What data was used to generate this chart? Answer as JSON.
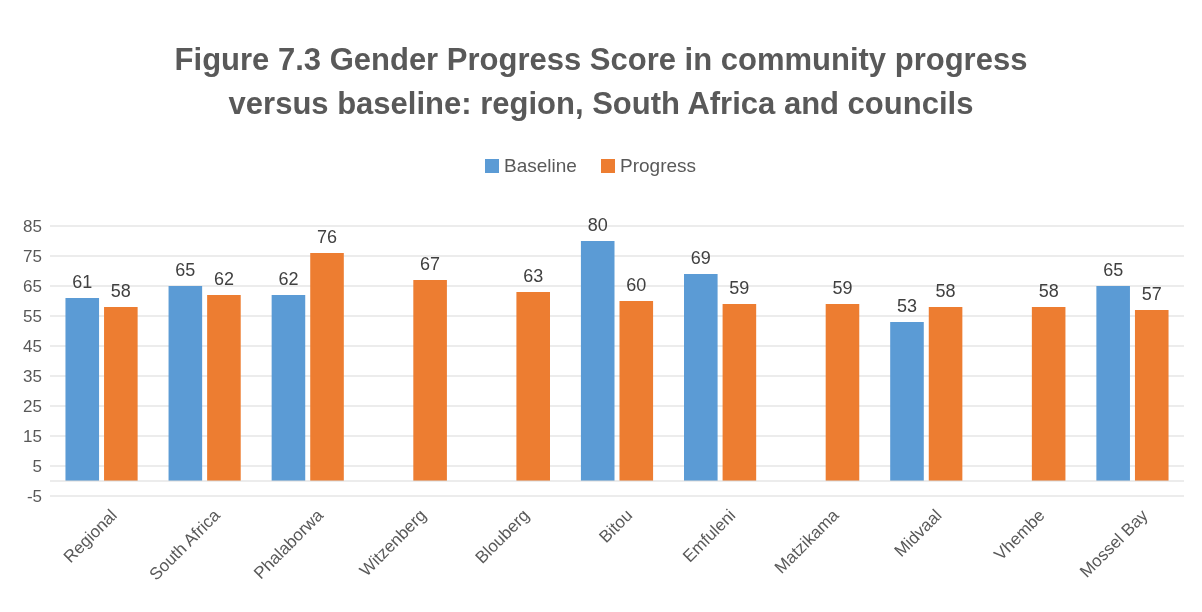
{
  "chart_data": {
    "type": "bar",
    "title": "Figure 7.3 Gender Progress Score in community progress versus baseline: region, South Africa and councils",
    "categories": [
      "Regional",
      "South Africa",
      "Phalaborwa",
      "Witzenberg",
      "Blouberg",
      "Bitou",
      "Emfuleni",
      "Matzikama",
      "Midvaal",
      "Vhembe",
      "Mossel Bay"
    ],
    "series": [
      {
        "name": "Baseline",
        "color": "#5b9bd5",
        "values": [
          61,
          65,
          62,
          null,
          null,
          80,
          69,
          null,
          53,
          null,
          65
        ]
      },
      {
        "name": "Progress",
        "color": "#ed7d31",
        "values": [
          58,
          62,
          76,
          67,
          63,
          60,
          59,
          59,
          58,
          58,
          57
        ]
      }
    ],
    "ylim": [
      -5,
      85
    ],
    "yticks": [
      -5,
      5,
      15,
      25,
      35,
      45,
      55,
      65,
      75,
      85
    ],
    "grid": "y",
    "legend": "top",
    "data_labels": true
  }
}
